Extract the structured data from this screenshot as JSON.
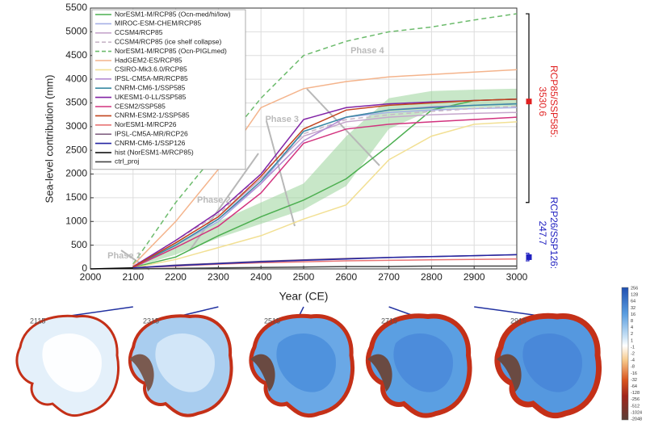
{
  "chart_data": {
    "type": "line",
    "xlabel": "Year (CE)",
    "ylabel": "Sea-level contribution (mm)",
    "x": [
      2000,
      2100,
      2200,
      2300,
      2400,
      2500,
      2600,
      2700,
      2800,
      2900,
      3000
    ],
    "xlim": [
      2000,
      3000
    ],
    "xticks": [
      2000,
      2100,
      2200,
      2300,
      2400,
      2500,
      2600,
      2700,
      2800,
      2900,
      3000
    ],
    "ylim": [
      0,
      5500
    ],
    "yticks": [
      0,
      500,
      1000,
      1500,
      2000,
      2500,
      3000,
      3500,
      4000,
      4500,
      5000,
      5500
    ],
    "grid": true,
    "legend": "upper left",
    "shade": {
      "color": "#9ad49a",
      "lower": [
        null,
        30,
        300,
        650,
        950,
        1250,
        1750,
        2950,
        3350,
        3400,
        3420
      ],
      "upper": [
        null,
        60,
        550,
        1000,
        1400,
        1800,
        2800,
        3600,
        3750,
        3780,
        3800
      ]
    },
    "series": [
      {
        "name": "NorESM1-M/RCP85 (Ocn-med/hi/low)",
        "color": "#4caf50",
        "dash": false,
        "values": [
          null,
          30,
          250,
          700,
          1100,
          1450,
          1900,
          2600,
          3350,
          3550,
          3580
        ]
      },
      {
        "name": "MIROC-ESM-CHEM/RCP85",
        "color": "#a6b0e6",
        "dash": false,
        "values": [
          null,
          40,
          500,
          1000,
          1800,
          2900,
          3200,
          3300,
          3350,
          3380,
          3400
        ]
      },
      {
        "name": "CCSM4/RCP85",
        "color": "#c6a6cc",
        "dash": false,
        "values": [
          null,
          40,
          550,
          1100,
          1900,
          2800,
          3100,
          3200,
          3250,
          3280,
          3300
        ]
      },
      {
        "name": "CCSM4/RCP85 (ice shelf collapse)",
        "color": "#c8b6c8",
        "dash": true,
        "values": [
          null,
          40,
          600,
          1150,
          2000,
          2850,
          3150,
          3250,
          3320,
          3380,
          3430
        ]
      },
      {
        "name": "NorESM1-M/RCP85 (Ocn-PIGLmed)",
        "color": "#6cbb6c",
        "dash": true,
        "values": [
          null,
          100,
          1400,
          2500,
          3600,
          4500,
          4800,
          5000,
          5100,
          5250,
          5380
        ]
      },
      {
        "name": "HadGEM2-ES/RCP85",
        "color": "#f4b48c",
        "dash": false,
        "values": [
          null,
          80,
          1000,
          2100,
          3400,
          3800,
          3950,
          4050,
          4100,
          4150,
          4200
        ]
      },
      {
        "name": "CSIRO-Mk3.6.0/RCP85",
        "color": "#f2e094",
        "dash": false,
        "values": [
          null,
          20,
          200,
          450,
          700,
          1050,
          1350,
          2300,
          2800,
          3050,
          3100
        ]
      },
      {
        "name": "IPSL-CM5A-MR/RCP85",
        "color": "#b48cd2",
        "dash": false,
        "values": [
          null,
          40,
          500,
          1050,
          1800,
          2700,
          3200,
          3350,
          3420,
          3450,
          3480
        ]
      },
      {
        "name": "CNRM-CM6-1/SSP585",
        "color": "#3a8aa4",
        "dash": false,
        "values": [
          null,
          40,
          500,
          1050,
          1850,
          2900,
          3200,
          3350,
          3400,
          3450,
          3480
        ]
      },
      {
        "name": "UKESM1-0-LL/SSP585",
        "color": "#8224a6",
        "dash": false,
        "values": [
          null,
          50,
          600,
          1200,
          2000,
          3150,
          3400,
          3480,
          3520,
          3550,
          3580
        ]
      },
      {
        "name": "CESM2/SSP585",
        "color": "#d2327e",
        "dash": false,
        "values": [
          null,
          30,
          450,
          900,
          1600,
          2650,
          2950,
          3050,
          3100,
          3150,
          3200
        ]
      },
      {
        "name": "CNRM-ESM2-1/SSP585",
        "color": "#c2441e",
        "dash": false,
        "values": [
          null,
          40,
          550,
          1100,
          1950,
          2950,
          3350,
          3450,
          3500,
          3550,
          3580
        ]
      },
      {
        "name": "NorESM1-M/RCP26",
        "color": "#e87474",
        "dash": false,
        "values": [
          null,
          20,
          60,
          100,
          130,
          150,
          170,
          180,
          190,
          200,
          210
        ]
      },
      {
        "name": "IPSL-CM5A-MR/RCP26",
        "color": "#846484",
        "dash": false,
        "values": [
          null,
          20,
          80,
          120,
          160,
          190,
          220,
          240,
          260,
          280,
          300
        ]
      },
      {
        "name": "CNRM-CM6-1/SSP126",
        "color": "#2424a2",
        "dash": false,
        "values": [
          null,
          20,
          70,
          110,
          150,
          180,
          210,
          240,
          260,
          280,
          300
        ]
      },
      {
        "name": "hist (NorESM1-M/RCP85)",
        "color": "#000000",
        "dash": false,
        "values": [
          0,
          20,
          null,
          null,
          null,
          null,
          null,
          null,
          null,
          null,
          null
        ]
      },
      {
        "name": "ctrl_proj",
        "color": "#444444",
        "dash": false,
        "values": [
          null,
          0,
          10,
          20,
          30,
          40,
          50,
          50,
          60,
          60,
          60
        ]
      }
    ],
    "annotations": [
      {
        "text": "Phase 1",
        "x": 2040,
        "y": 270
      },
      {
        "text": "Phase 2",
        "x": 2250,
        "y": 1450
      },
      {
        "text": "Phase 3",
        "x": 2410,
        "y": 3150
      },
      {
        "text": "Phase 4",
        "x": 2610,
        "y": 4600
      }
    ],
    "ranges": [
      {
        "label": "RCP85/SSP585:",
        "value": 3530.6,
        "range": [
          1400,
          5380
        ],
        "color": "#e02020"
      },
      {
        "label": "RCP26/SSP126:",
        "value": 247.7,
        "range": [
          170,
          330
        ],
        "color": "#2020c0"
      }
    ],
    "maps": [
      {
        "label": "2115",
        "year": 2100
      },
      {
        "label": "2315",
        "year": 2300
      },
      {
        "label": "2515",
        "year": 2500
      },
      {
        "label": "2715",
        "year": 2700
      },
      {
        "label": "2915",
        "year": 2900
      }
    ],
    "colorbar_ticks": [
      256,
      128,
      64,
      32,
      16,
      8,
      4,
      2,
      1,
      -1,
      -2,
      -4,
      -8,
      -16,
      -32,
      -64,
      -128,
      -256,
      -512,
      -1024,
      -2048
    ]
  }
}
